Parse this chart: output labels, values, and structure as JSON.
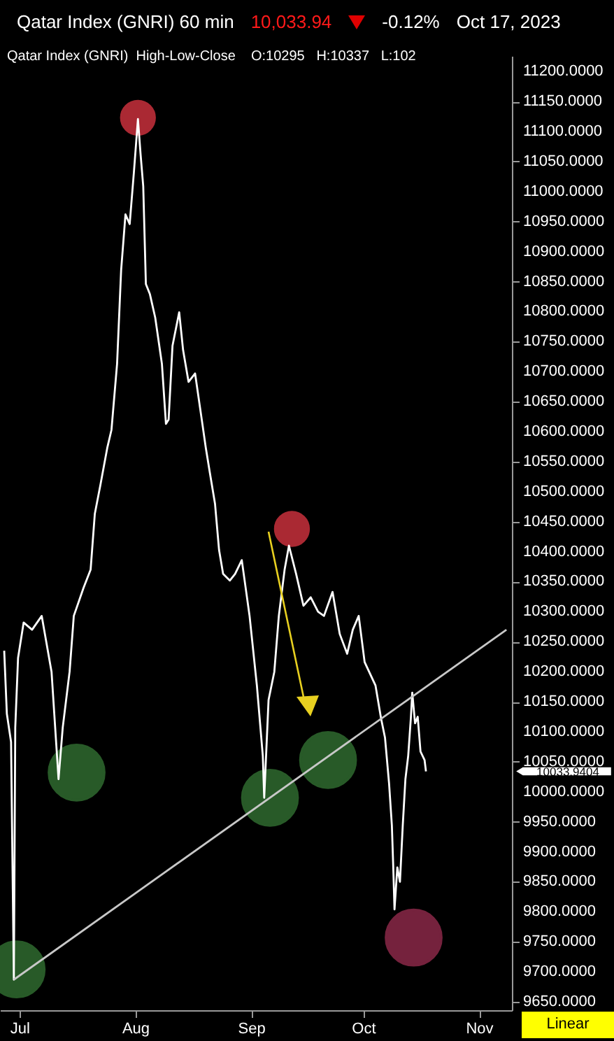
{
  "chart_data": {
    "type": "line",
    "title": "Qatar Index  (GNRI)   60 min",
    "subtitle": "Qatar Index (GNRI)  High-Low-Close    O:10295   H:10337   L:102",
    "annotations": [
      "10,033.94",
      "-0.12%",
      "Oct 17, 2023",
      "Linear",
      "10033.9404"
    ],
    "xlim": [
      "2023-06-25T19:00",
      "2023-11-09T19:00"
    ],
    "xticks": [
      {
        "value": "2023-07-01T00:00",
        "label": "Jul"
      },
      {
        "value": "2023-08-01T00:00",
        "label": "Aug"
      },
      {
        "value": "2023-09-01T00:00",
        "label": "Sep"
      },
      {
        "value": "2023-10-01T00:00",
        "label": "Oct"
      },
      {
        "value": "2023-11-01T00:00",
        "label": "Nov"
      }
    ],
    "ylim": [
      9636,
      11226
    ],
    "yticks": [
      {
        "value": 9650,
        "label": "9650.0000"
      },
      {
        "value": 9700,
        "label": "9700.0000"
      },
      {
        "value": 9750,
        "label": "9750.0000"
      },
      {
        "value": 9800,
        "label": "9800.0000"
      },
      {
        "value": 9850,
        "label": "9850.0000"
      },
      {
        "value": 9900,
        "label": "9900.0000"
      },
      {
        "value": 9950,
        "label": "9950.0000"
      },
      {
        "value": 10000,
        "label": "10000.0000"
      },
      {
        "value": 10050,
        "label": "10050.0000"
      },
      {
        "value": 10100,
        "label": "10100.0000"
      },
      {
        "value": 10150,
        "label": "10150.0000"
      },
      {
        "value": 10200,
        "label": "10200.0000"
      },
      {
        "value": 10250,
        "label": "10250.0000"
      },
      {
        "value": 10300,
        "label": "10300.0000"
      },
      {
        "value": 10350,
        "label": "10350.0000"
      },
      {
        "value": 10400,
        "label": "10400.0000"
      },
      {
        "value": 10450,
        "label": "10450.0000"
      },
      {
        "value": 10500,
        "label": "10500.0000"
      },
      {
        "value": 10550,
        "label": "10550.0000"
      },
      {
        "value": 10600,
        "label": "10600.0000"
      },
      {
        "value": 10650,
        "label": "10650.0000"
      },
      {
        "value": 10700,
        "label": "10700.0000"
      },
      {
        "value": 10750,
        "label": "10750.0000"
      },
      {
        "value": 10800,
        "label": "10800.0000"
      },
      {
        "value": 10850,
        "label": "10850.0000"
      },
      {
        "value": 10900,
        "label": "10900.0000"
      },
      {
        "value": 10950,
        "label": "10950.0000"
      },
      {
        "value": 11000,
        "label": "11000.0000"
      },
      {
        "value": 11050,
        "label": "11050.0000"
      },
      {
        "value": 11100,
        "label": "11100.0000"
      },
      {
        "value": 11150,
        "label": "11150.0000"
      },
      {
        "value": 11200,
        "label": "11200.0000"
      }
    ],
    "series": [
      {
        "type": "scatter",
        "color": "#2f6a2f",
        "x": [
          "2023-06-30T06:00",
          "2023-07-16T07:00",
          "2023-09-06T01:00",
          "2023-09-21T14:00"
        ],
        "values": [
          9704,
          10032,
          9990,
          10053
        ]
      },
      {
        "type": "scatter",
        "color": "#c8313d",
        "x": [
          "2023-08-01T17:00",
          "2023-09-11T22:00"
        ],
        "values": [
          11123,
          10438
        ]
      },
      {
        "type": "scatter",
        "color": "#8a2848",
        "x": [
          "2023-10-14T12:00"
        ],
        "values": [
          9757
        ]
      },
      {
        "type": "line",
        "color": "#ffffff",
        "x": [
          "2023-06-26T22:00",
          "2023-06-27T15:00",
          "2023-06-28T18:00",
          "2023-06-29T12:00",
          "2023-06-29T21:00",
          "2023-06-30T15:00",
          "2023-07-02T03:00",
          "2023-07-04T09:00",
          "2023-07-06T23:00",
          "2023-07-09T14:00",
          "2023-07-11T11:00",
          "2023-07-12T14:00",
          "2023-07-14T10:00",
          "2023-07-15T13:00",
          "2023-07-18T04:00",
          "2023-07-20T01:00",
          "2023-07-21T04:00",
          "2023-07-22T15:00",
          "2023-07-24T12:00",
          "2023-07-25T15:00",
          "2023-07-27T03:00",
          "2023-07-28T05:00",
          "2023-07-29T09:00",
          "2023-07-30T12:00",
          "2023-07-31T15:00",
          "2023-08-01T17:00",
          "2023-08-02T10:00",
          "2023-08-03T03:00",
          "2023-08-03T20:00",
          "2023-08-04T22:00",
          "2023-08-06T08:00",
          "2023-08-08T03:00",
          "2023-08-09T05:00",
          "2023-08-09T22:00",
          "2023-08-10T23:00",
          "2023-08-12T18:00",
          "2023-08-13T19:00",
          "2023-08-15T06:00",
          "2023-08-17T00:00",
          "2023-08-18T19:00",
          "2023-08-19T21:00",
          "2023-08-20T22:00",
          "2023-08-22T08:00",
          "2023-08-23T10:00",
          "2023-08-24T12:00",
          "2023-08-26T07:00",
          "2023-08-27T17:00",
          "2023-08-29T12:00",
          "2023-08-31T14:00",
          "2023-09-02T13:00",
          "2023-09-04T03:00",
          "2023-09-04T12:00",
          "2023-09-05T16:00",
          "2023-09-07T05:00",
          "2023-09-08T10:00",
          "2023-09-09T23:00",
          "2023-09-11T03:00",
          "2023-09-13T01:00",
          "2023-09-15T00:00",
          "2023-09-16T23:00",
          "2023-09-18T22:00",
          "2023-09-20T12:00",
          "2023-09-22T19:00",
          "2023-09-24T17:00",
          "2023-09-26T17:00",
          "2023-09-28T05:00",
          "2023-09-29T19:00",
          "2023-10-01T09:00",
          "2023-10-04T07:00",
          "2023-10-05T18:00",
          "2023-10-06T20:00",
          "2023-10-07T22:00",
          "2023-10-08T16:00",
          "2023-10-09T01:00",
          "2023-10-09T09:00",
          "2023-10-10T03:00",
          "2023-10-10T20:00",
          "2023-10-11T14:00",
          "2023-10-12T07:00",
          "2023-10-13T01:00",
          "2023-10-13T18:00",
          "2023-10-14T03:00",
          "2023-10-14T21:00",
          "2023-10-15T14:00",
          "2023-10-16T08:00",
          "2023-10-17T10:00",
          "2023-10-17T19:00"
        ],
        "values": [
          10235,
          10130,
          10083,
          9687,
          10107,
          10223,
          10282,
          10270,
          10293,
          10200,
          10021,
          10107,
          10200,
          10293,
          10340,
          10370,
          10463,
          10510,
          10573,
          10603,
          10713,
          10869,
          10962,
          10946,
          11032,
          11121,
          11062,
          11009,
          10846,
          10829,
          10790,
          10713,
          10613,
          10620,
          10743,
          10799,
          10736,
          10683,
          10697,
          10620,
          10573,
          10533,
          10480,
          10403,
          10363,
          10352,
          10363,
          10386,
          10293,
          10177,
          10060,
          9990,
          10153,
          10200,
          10293,
          10370,
          10410,
          10363,
          10310,
          10324,
          10300,
          10293,
          10333,
          10263,
          10230,
          10270,
          10293,
          10216,
          10177,
          10123,
          10090,
          10014,
          9944,
          9874,
          9804,
          9874,
          9850,
          9944,
          10021,
          10060,
          10123,
          10165,
          10114,
          10125,
          10067,
          10053,
          10034
        ]
      },
      {
        "type": "line",
        "color": "#c8c8c8",
        "x": [
          "2023-06-29T12:00",
          "2023-11-08T08:00"
        ],
        "values": [
          9687,
          10270
        ]
      }
    ]
  }
}
